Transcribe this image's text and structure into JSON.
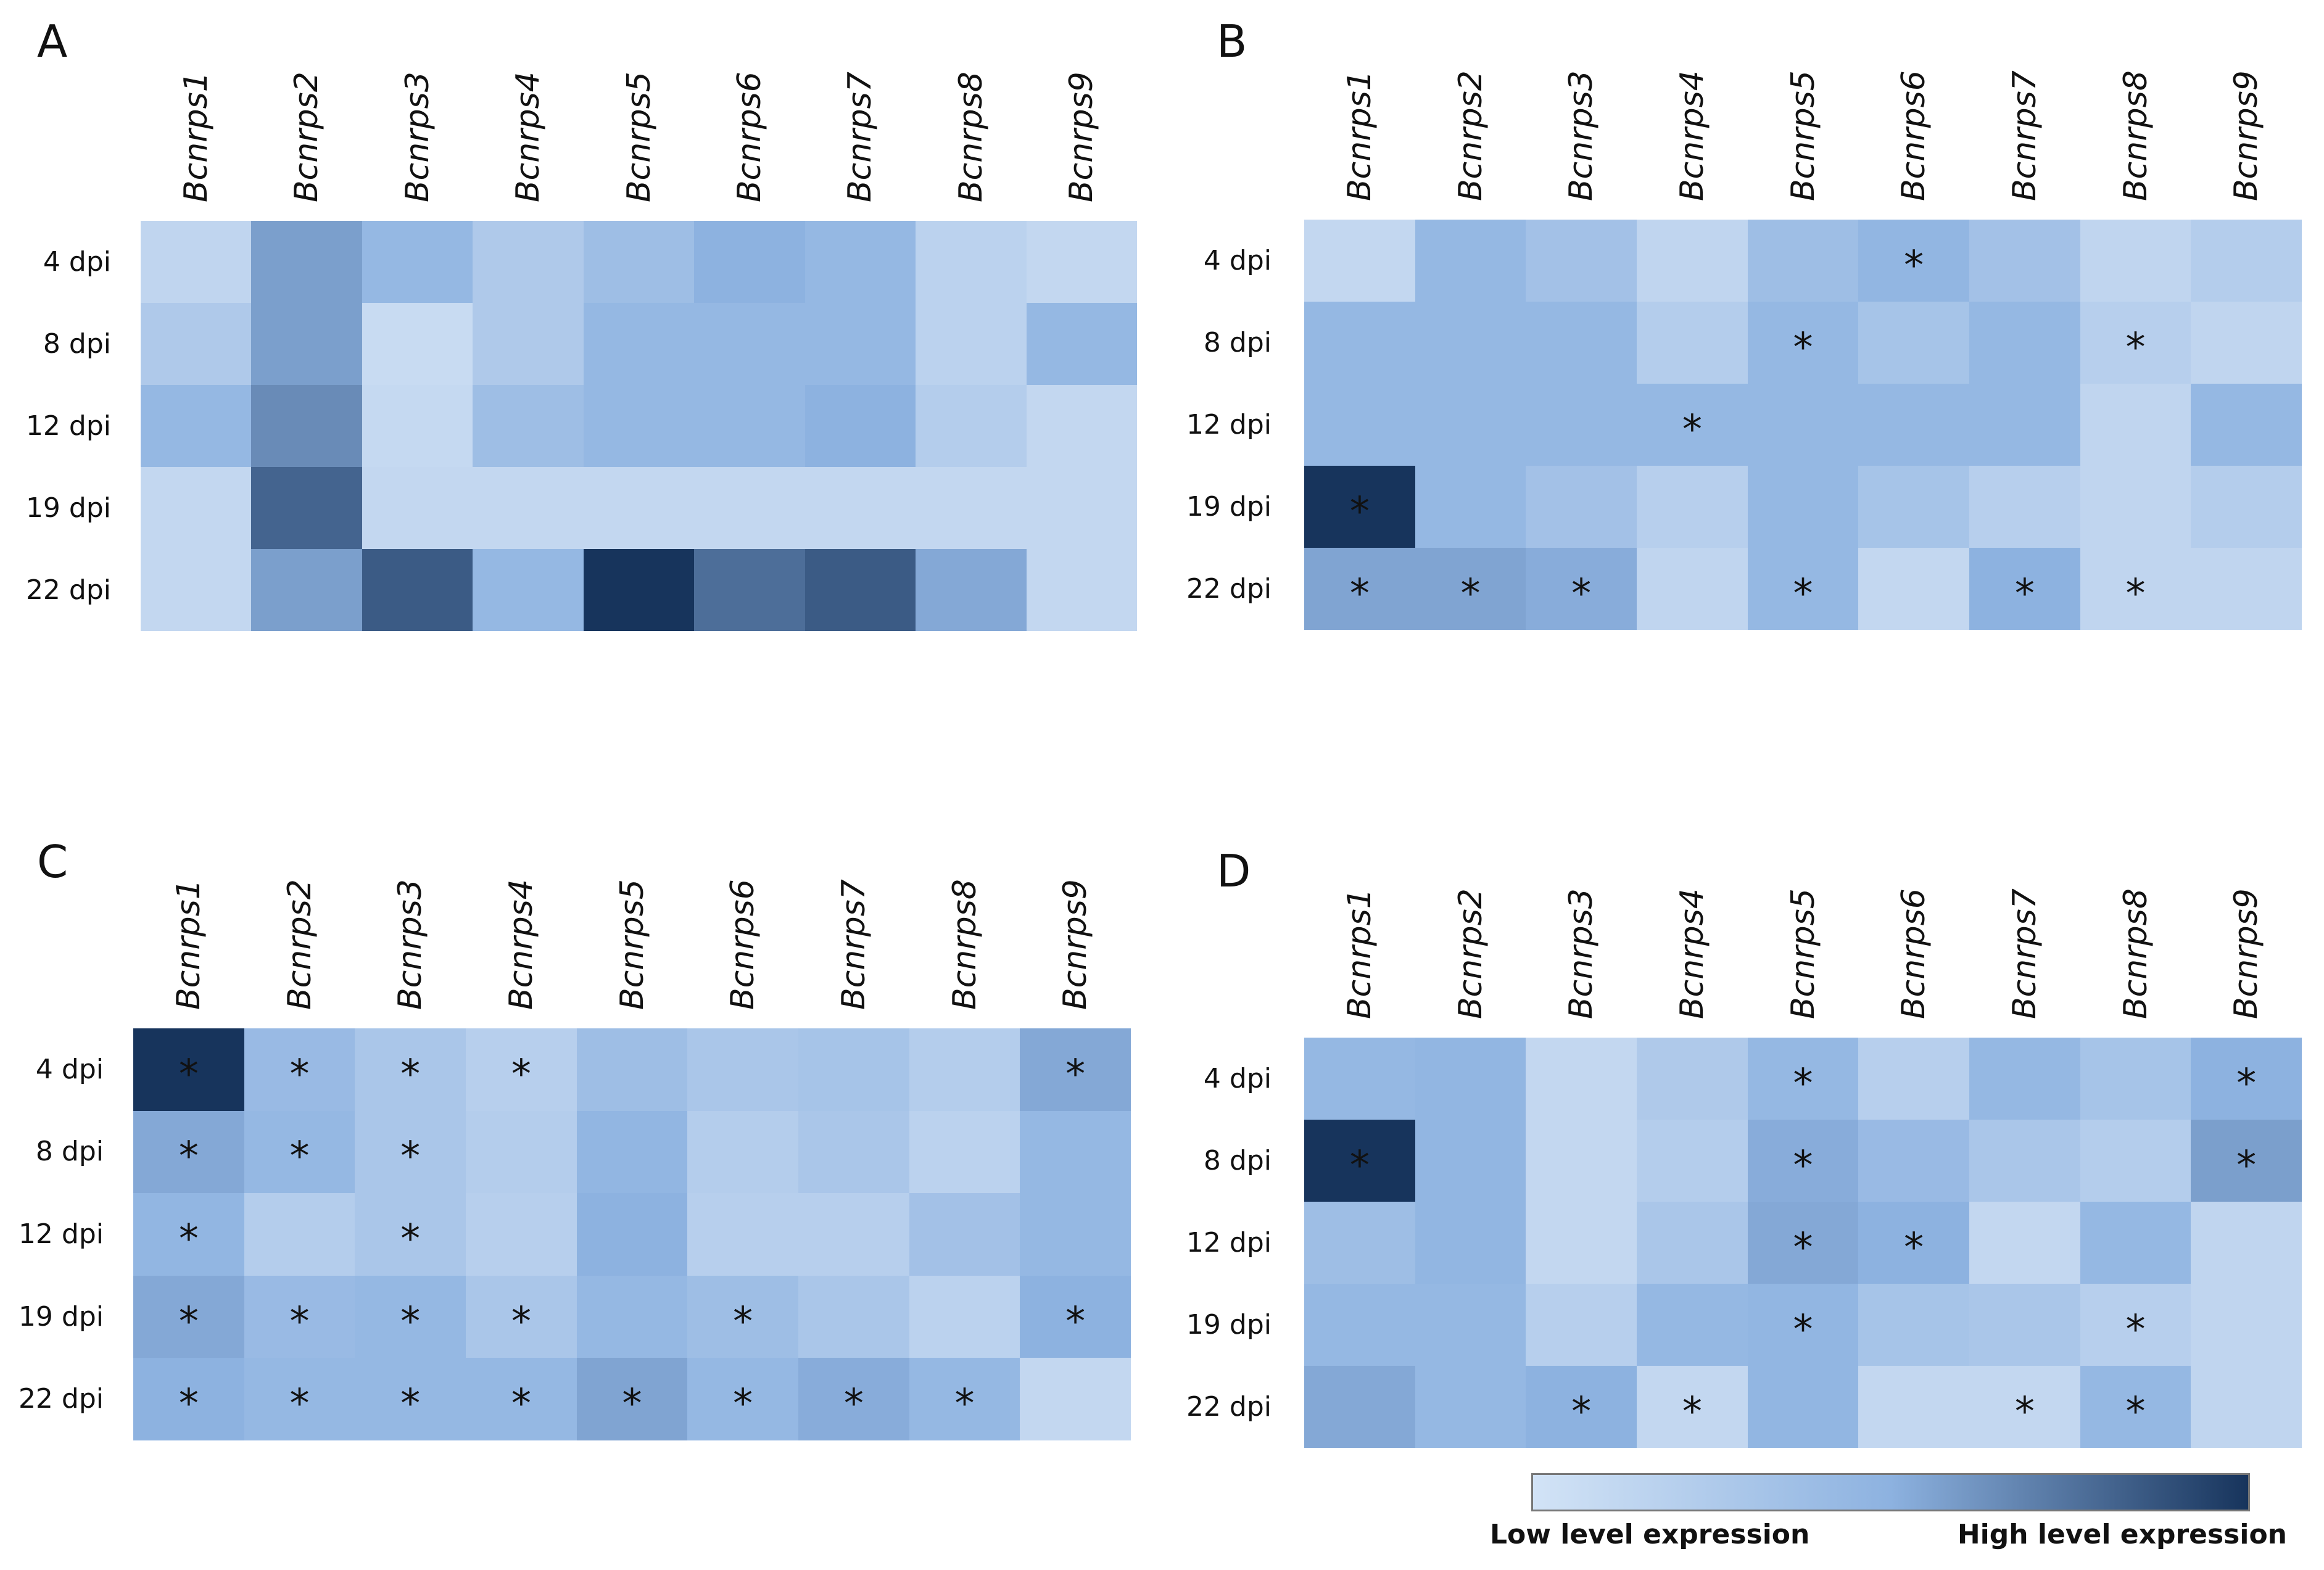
{
  "chart_data": {
    "type": "heatmap",
    "genes": [
      "Bcnrps1",
      "Bcnrps2",
      "Bcnrps3",
      "Bcnrps4",
      "Bcnrps5",
      "Bcnrps6",
      "Bcnrps7",
      "Bcnrps8",
      "Bcnrps9"
    ],
    "rows": [
      "4 dpi",
      "8 dpi",
      "12 dpi",
      "19 dpi",
      "22 dpi"
    ],
    "significance_marker": "*",
    "color_scale": {
      "low": "#c8dbf2",
      "mid": "#8db2e0",
      "high": "#17345c"
    },
    "legend": {
      "low_label": "Low level expression",
      "high_label": "High level expression"
    },
    "panels": [
      {
        "label": "A",
        "levels": [
          [
            0.05,
            0.45,
            0.3,
            0.15,
            0.25,
            0.35,
            0.3,
            0.08,
            0.03
          ],
          [
            0.15,
            0.45,
            0.0,
            0.15,
            0.3,
            0.3,
            0.3,
            0.08,
            0.3
          ],
          [
            0.3,
            0.55,
            0.02,
            0.25,
            0.3,
            0.3,
            0.35,
            0.12,
            0.03
          ],
          [
            0.03,
            0.75,
            0.03,
            0.03,
            0.03,
            0.03,
            0.03,
            0.03,
            0.03
          ],
          [
            0.03,
            0.45,
            0.8,
            0.3,
            1.0,
            0.7,
            0.8,
            0.4,
            0.03
          ]
        ],
        "stars": [
          [
            0,
            0,
            0,
            0,
            0,
            0,
            0,
            0,
            0
          ],
          [
            0,
            0,
            0,
            0,
            0,
            0,
            0,
            0,
            0
          ],
          [
            0,
            0,
            0,
            0,
            0,
            0,
            0,
            0,
            0
          ],
          [
            0,
            0,
            0,
            0,
            0,
            0,
            0,
            0,
            0
          ],
          [
            0,
            0,
            0,
            0,
            0,
            0,
            0,
            0,
            0
          ]
        ]
      },
      {
        "label": "B",
        "levels": [
          [
            0.03,
            0.3,
            0.22,
            0.05,
            0.25,
            0.32,
            0.22,
            0.05,
            0.12
          ],
          [
            0.3,
            0.3,
            0.3,
            0.12,
            0.3,
            0.2,
            0.3,
            0.1,
            0.05
          ],
          [
            0.3,
            0.3,
            0.3,
            0.3,
            0.3,
            0.3,
            0.3,
            0.05,
            0.3
          ],
          [
            1.0,
            0.3,
            0.22,
            0.1,
            0.3,
            0.2,
            0.1,
            0.05,
            0.12
          ],
          [
            0.42,
            0.42,
            0.38,
            0.05,
            0.3,
            0.03,
            0.35,
            0.05,
            0.05
          ]
        ],
        "stars": [
          [
            0,
            0,
            0,
            0,
            0,
            1,
            0,
            0,
            0
          ],
          [
            0,
            0,
            0,
            0,
            1,
            0,
            0,
            1,
            0
          ],
          [
            0,
            0,
            0,
            1,
            0,
            0,
            0,
            0,
            0
          ],
          [
            1,
            0,
            0,
            0,
            0,
            0,
            0,
            0,
            0
          ],
          [
            1,
            1,
            1,
            0,
            1,
            0,
            1,
            1,
            0
          ]
        ]
      },
      {
        "label": "C",
        "levels": [
          [
            1.0,
            0.28,
            0.18,
            0.1,
            0.25,
            0.18,
            0.2,
            0.12,
            0.4
          ],
          [
            0.4,
            0.3,
            0.18,
            0.12,
            0.32,
            0.12,
            0.18,
            0.08,
            0.3
          ],
          [
            0.32,
            0.12,
            0.18,
            0.1,
            0.35,
            0.1,
            0.1,
            0.22,
            0.3
          ],
          [
            0.4,
            0.28,
            0.3,
            0.18,
            0.3,
            0.25,
            0.18,
            0.08,
            0.35
          ],
          [
            0.35,
            0.3,
            0.3,
            0.3,
            0.42,
            0.3,
            0.38,
            0.3,
            0.03
          ]
        ],
        "stars": [
          [
            1,
            1,
            1,
            1,
            0,
            0,
            0,
            0,
            1
          ],
          [
            1,
            1,
            1,
            0,
            0,
            0,
            0,
            0,
            0
          ],
          [
            1,
            0,
            1,
            0,
            0,
            0,
            0,
            0,
            0
          ],
          [
            1,
            1,
            1,
            1,
            0,
            1,
            0,
            0,
            1
          ],
          [
            1,
            1,
            1,
            1,
            1,
            1,
            1,
            1,
            0
          ]
        ]
      },
      {
        "label": "D",
        "levels": [
          [
            0.3,
            0.32,
            0.03,
            0.15,
            0.3,
            0.1,
            0.3,
            0.2,
            0.35
          ],
          [
            1.0,
            0.32,
            0.03,
            0.12,
            0.38,
            0.28,
            0.18,
            0.12,
            0.45
          ],
          [
            0.25,
            0.32,
            0.03,
            0.18,
            0.4,
            0.35,
            0.03,
            0.3,
            0.05
          ],
          [
            0.3,
            0.3,
            0.1,
            0.3,
            0.32,
            0.2,
            0.18,
            0.1,
            0.05
          ],
          [
            0.4,
            0.3,
            0.35,
            0.03,
            0.32,
            0.03,
            0.03,
            0.3,
            0.05
          ]
        ],
        "stars": [
          [
            0,
            0,
            0,
            0,
            1,
            0,
            0,
            0,
            1
          ],
          [
            1,
            0,
            0,
            0,
            1,
            0,
            0,
            0,
            1
          ],
          [
            0,
            0,
            0,
            0,
            1,
            1,
            0,
            0,
            0
          ],
          [
            0,
            0,
            0,
            0,
            1,
            0,
            0,
            1,
            0
          ],
          [
            0,
            0,
            1,
            1,
            0,
            0,
            1,
            1,
            0
          ]
        ]
      }
    ]
  }
}
